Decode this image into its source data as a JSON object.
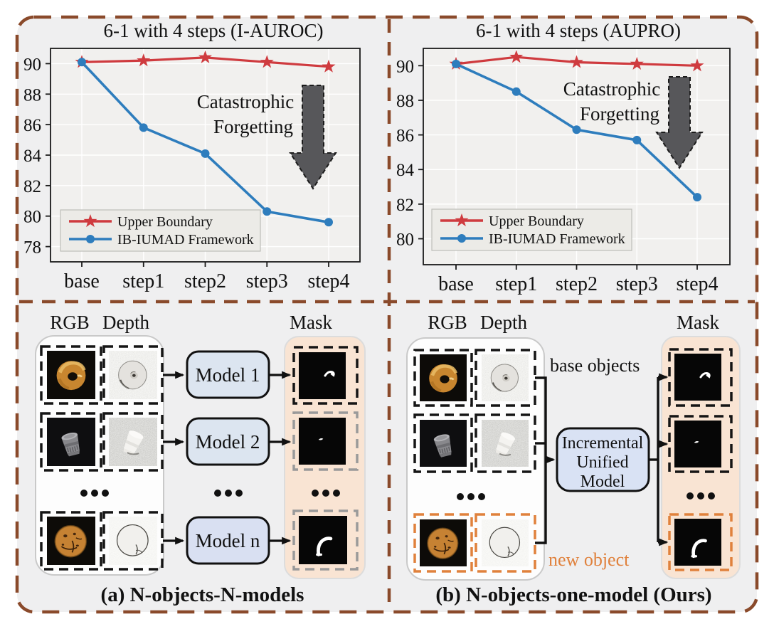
{
  "colors": {
    "frame_brown": "#8a4a2b",
    "background": "#efeff0",
    "accent_orange": "#e0813c",
    "mask_panel_peach": "#f9e4d3",
    "model_box_blue": "#dce5f0",
    "unified_box_blue": "#d9e2f4",
    "series_red": "#cf3b3f",
    "series_blue": "#2e7dbd",
    "forgetting_arrow_gray": "#57575a"
  },
  "chart_data": [
    {
      "type": "line",
      "title": "6-1 with 4 steps  (I-AUROC)",
      "categories": [
        "base",
        "step1",
        "step2",
        "step3",
        "step4"
      ],
      "ylim": [
        77,
        91
      ],
      "yticks": [
        78,
        80,
        82,
        84,
        86,
        88,
        90
      ],
      "grid": true,
      "legend_position": "lower left",
      "series": [
        {
          "name": "Upper Boundary",
          "color": "#cf3b3f",
          "marker": "star",
          "values": [
            90.1,
            90.2,
            90.4,
            90.1,
            89.8
          ]
        },
        {
          "name": "IB-IUMAD Framework",
          "color": "#2e7dbd",
          "marker": "circle",
          "values": [
            90.1,
            85.8,
            84.1,
            80.3,
            79.6
          ]
        }
      ],
      "annotation": {
        "line1": "Catastrophic",
        "line2": "Forgetting"
      }
    },
    {
      "type": "line",
      "title": "6-1 with 4 steps  (AUPRO)",
      "categories": [
        "base",
        "step1",
        "step2",
        "step3",
        "step4"
      ],
      "ylim": [
        78.5,
        91
      ],
      "yticks": [
        80,
        82,
        84,
        86,
        88,
        90
      ],
      "grid": true,
      "legend_position": "lower left",
      "series": [
        {
          "name": "Upper Boundary",
          "color": "#cf3b3f",
          "marker": "star",
          "values": [
            90.1,
            90.5,
            90.2,
            90.1,
            90.0
          ]
        },
        {
          "name": "IB-IUMAD Framework",
          "color": "#2e7dbd",
          "marker": "circle",
          "values": [
            90.1,
            88.5,
            86.3,
            85.7,
            82.4
          ]
        }
      ],
      "annotation": {
        "line1": "Catastrophic",
        "line2": "Forgetting"
      }
    }
  ],
  "diagram_a": {
    "caption": "(a) N-objects-N-models",
    "col_rgb": "RGB",
    "col_depth": "Depth",
    "col_mask": "Mask",
    "models": [
      "Model 1",
      "Model 2",
      "Model n"
    ],
    "object_icons": [
      "bagel",
      "screw-cap",
      "cookie"
    ]
  },
  "diagram_b": {
    "caption": "(b) N-objects-one-model (Ours)",
    "col_rgb": "RGB",
    "col_depth": "Depth",
    "col_mask": "Mask",
    "model_lines": [
      "Incremental",
      "Unified",
      "Model"
    ],
    "label_base": "base objects",
    "label_new": "new object",
    "object_icons": [
      "bagel",
      "screw-cap",
      "cookie"
    ]
  }
}
